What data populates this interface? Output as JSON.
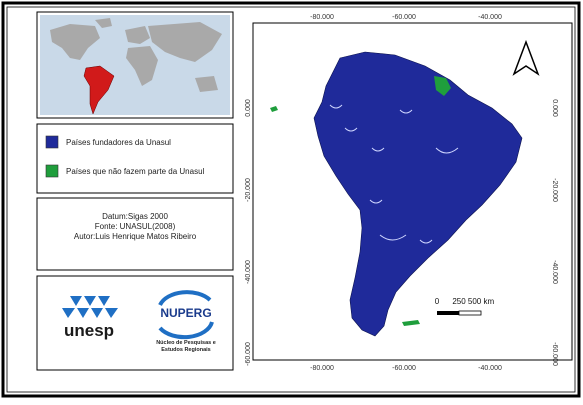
{
  "legend": {
    "items": [
      {
        "label": "Países fundadores da Unasul",
        "color": "#1f2a9a"
      },
      {
        "label": "Países que não fazem parte da Unasul",
        "color": "#1f9e3c"
      }
    ]
  },
  "info": {
    "lines": [
      "Datum:Sigas 2000",
      "Fonte: UNASUL(2008)",
      "Autor:Luis Henrique Matos Ribeiro"
    ]
  },
  "logos": {
    "unesp": "unesp",
    "nuperg": "NUPERG",
    "nuperg_caption": [
      "Núcleo de Pesquisas  e",
      "Estudos Regionais"
    ]
  },
  "map": {
    "x_labels": [
      "-80.000",
      "-60.000",
      "-40.000"
    ],
    "y_labels": [
      "0.000",
      "-20.000",
      "-40.000",
      "-60.000"
    ],
    "scale_labels": [
      "0",
      "250",
      "500 km"
    ]
  }
}
